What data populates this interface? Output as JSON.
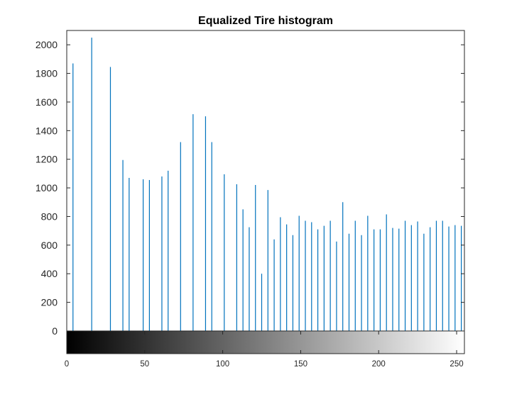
{
  "chart_data": {
    "type": "bar",
    "title": "Equalized Tire histogram",
    "xlabel": "",
    "ylabel": "",
    "xlim": [
      0,
      255
    ],
    "ylim": [
      0,
      2100
    ],
    "grid": false,
    "colorbar": "gray",
    "yticks": [
      "0",
      "200",
      "400",
      "600",
      "800",
      "1000",
      "1200",
      "1400",
      "1600",
      "1800",
      "2000"
    ],
    "xticks": [
      "0",
      "50",
      "100",
      "150",
      "200",
      "250"
    ],
    "bar_color": "#0072bd",
    "x": [
      4,
      16,
      28,
      36,
      40,
      49,
      53,
      61,
      65,
      73,
      81,
      89,
      93,
      101,
      109,
      113,
      117,
      121,
      125,
      129,
      133,
      137,
      141,
      145,
      149,
      153,
      157,
      161,
      165,
      169,
      173,
      177,
      181,
      185,
      189,
      193,
      197,
      201,
      205,
      209,
      213,
      217,
      221,
      225,
      229,
      233,
      237,
      241,
      245,
      249,
      253
    ],
    "values": [
      1870,
      2050,
      1845,
      1195,
      1070,
      1060,
      1055,
      1080,
      1120,
      1320,
      1515,
      1500,
      1320,
      1095,
      1025,
      850,
      725,
      1020,
      400,
      985,
      640,
      795,
      745,
      670,
      805,
      770,
      760,
      710,
      735,
      770,
      625,
      900,
      680,
      770,
      670,
      805,
      710,
      710,
      815,
      720,
      715,
      770,
      740,
      765,
      680,
      725,
      770,
      770,
      730,
      740,
      735
    ]
  }
}
